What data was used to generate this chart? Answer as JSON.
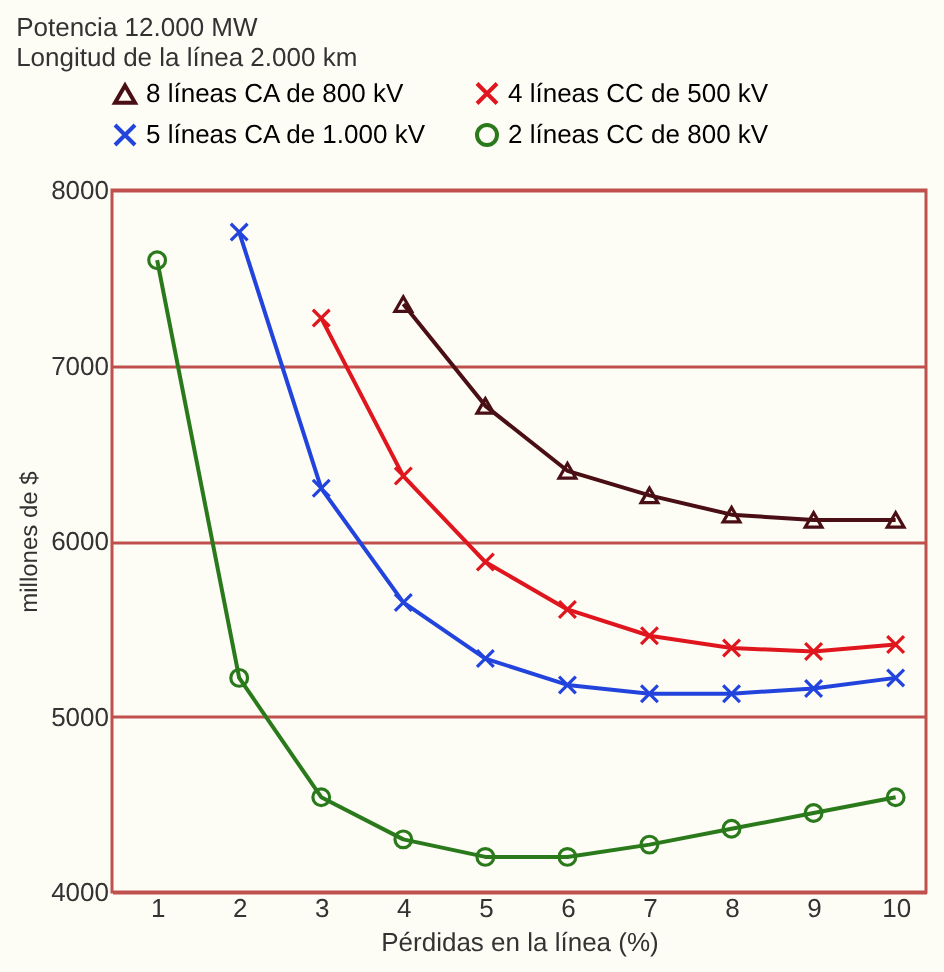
{
  "chart_data": {
    "type": "line",
    "xlabel": "Pérdidas en la línea (%)",
    "ylabel": "millones de $",
    "annotations": [
      "Potencia 12.000 MW",
      "Longitud de la línea 2.000 km"
    ],
    "x": [
      1,
      2,
      3,
      4,
      5,
      6,
      7,
      8,
      9,
      10
    ],
    "xlim": [
      0.45,
      10.37
    ],
    "xticks": [
      1,
      2,
      3,
      4,
      5,
      6,
      7,
      8,
      9,
      10
    ],
    "ylim": [
      4000,
      8000
    ],
    "yticks": [
      4000,
      5000,
      6000,
      7000,
      8000
    ],
    "grid": "y",
    "legend": "top",
    "series": [
      {
        "name": "8 líneas CA de 800 kV",
        "color": "#4a0f14",
        "marker": "triangle",
        "values": [
          null,
          null,
          null,
          7350,
          6770,
          6400,
          6260,
          6150,
          6120,
          6120
        ]
      },
      {
        "name": "4 líneas CC de 500 kV",
        "color": "#e0161e",
        "marker": "cross",
        "values": [
          null,
          null,
          7270,
          6370,
          5880,
          5610,
          5460,
          5390,
          5370,
          5410
        ]
      },
      {
        "name": "5 líneas CA de 1.000 kV",
        "color": "#2244dd",
        "marker": "cross",
        "values": [
          null,
          7760,
          6300,
          5650,
          5330,
          5180,
          5130,
          5130,
          5160,
          5220
        ]
      },
      {
        "name": "2 líneas CC de 800 kV",
        "color": "#2a7a1c",
        "marker": "circle",
        "values": [
          7600,
          5220,
          4540,
          4300,
          4200,
          4200,
          4270,
          4360,
          4450,
          4540
        ]
      }
    ]
  }
}
